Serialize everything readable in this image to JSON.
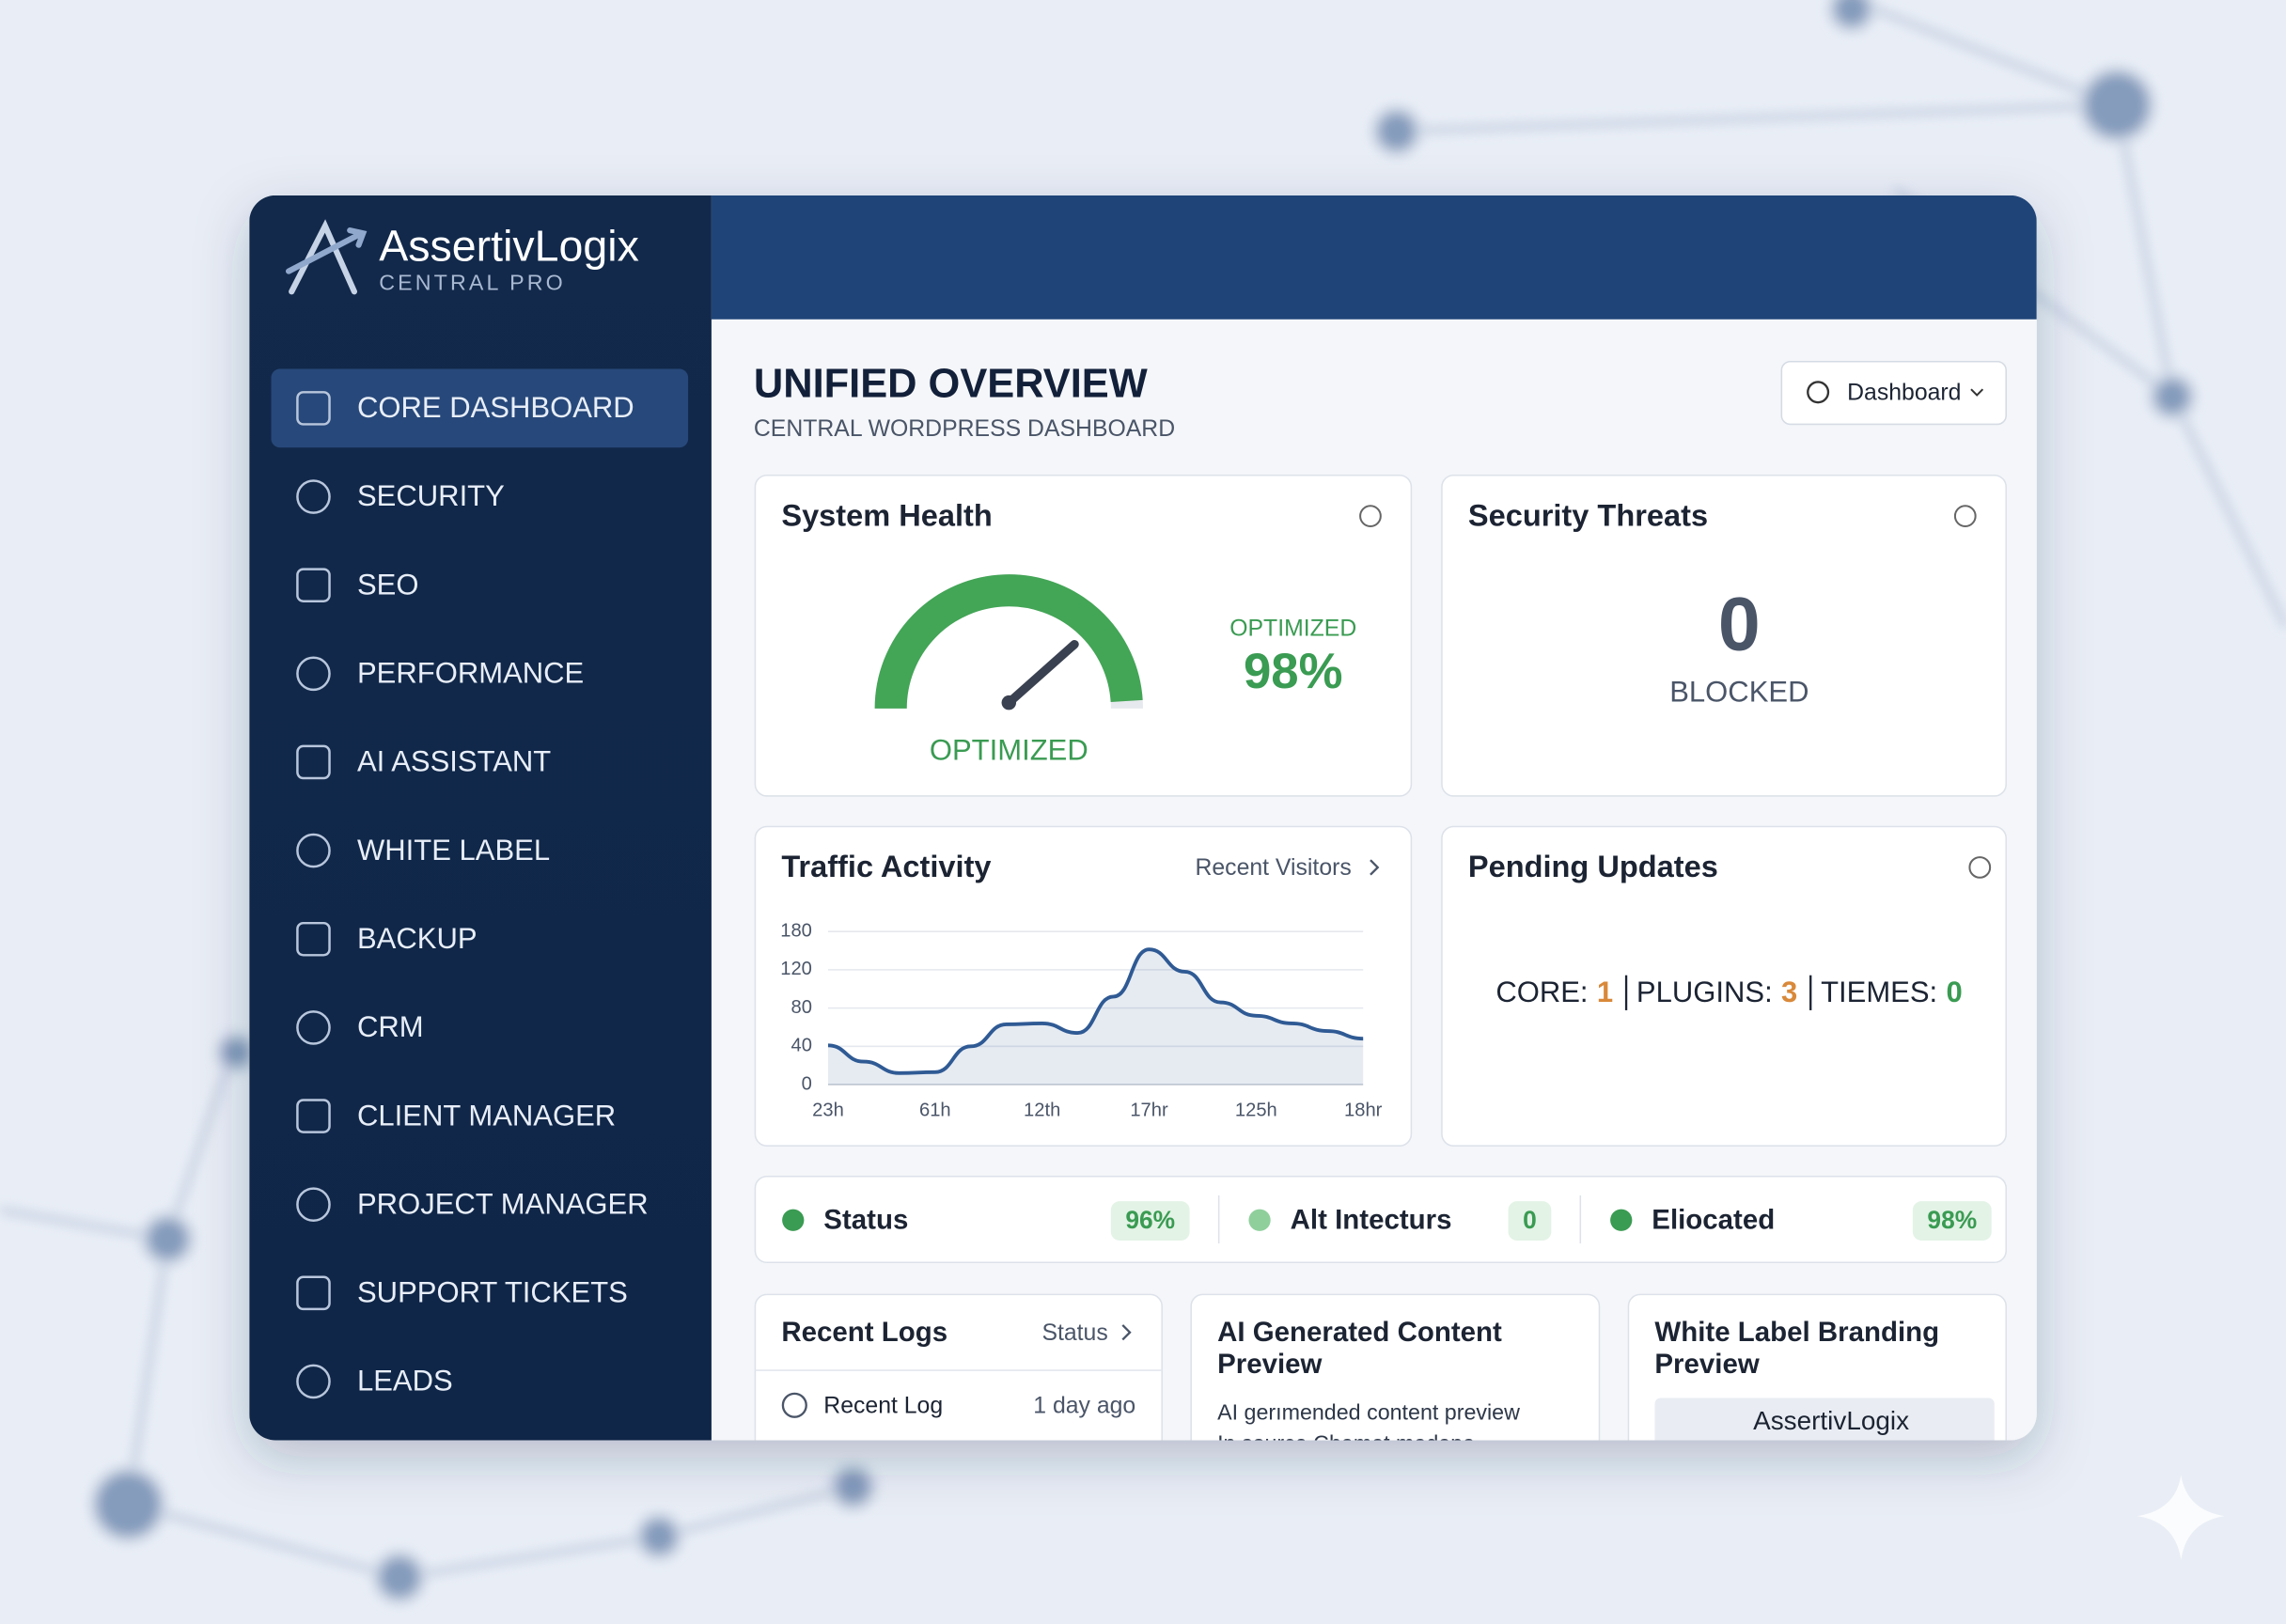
{
  "brand": {
    "name": "AssertivLogix",
    "subtitle": "CENTRAL PRO"
  },
  "nav": [
    "CORE DASHBOARD",
    "SECURITY",
    "SEO",
    "PERFORMANCE",
    "AI ASSISTANT",
    "WHITE LABEL",
    "BACKUP",
    "CRM",
    "CLIENT MANAGER",
    "PROJECT MANAGER",
    "SUPPORT TICKETS",
    "LEADS"
  ],
  "header": {
    "title": "UNIFIED OVERVIEW",
    "subtitle": "CENTRAL WORDPRESS DASHBOARD",
    "dropdown": "Dashboard"
  },
  "system_health": {
    "title": "System Health",
    "gauge_label": "OPTIMIZED",
    "status_label": "OPTIMIZED",
    "value": 98,
    "value_label": "98%"
  },
  "security_threats": {
    "title": "Security Threats",
    "count": 0,
    "label": "BLOCKED"
  },
  "traffic": {
    "title": "Traffic Activity",
    "link": "Recent Visitors",
    "type": "line",
    "categories": [
      "23h",
      null,
      null,
      "61h",
      null,
      null,
      "12th",
      null,
      null,
      "17hr",
      null,
      null,
      "125h",
      null,
      null,
      "18hr"
    ],
    "values": [
      41,
      24,
      12,
      13,
      40,
      63,
      64,
      54,
      92,
      152,
      118,
      86,
      72,
      64,
      56,
      48
    ],
    "yticks": [
      0,
      40,
      80,
      120,
      180
    ],
    "ylim": [
      0,
      180
    ],
    "color": "#2f5a94",
    "grid": true
  },
  "pending_updates": {
    "title": "Pending Updates",
    "items": [
      {
        "label": "CORE:",
        "value": 1
      },
      {
        "label": "PLUGINS:",
        "value": 3
      },
      {
        "label": "TIEMES:",
        "value": 0
      }
    ]
  },
  "status_bar": [
    {
      "name": "Status",
      "value": 96,
      "value_label": "96%"
    },
    {
      "name": "Alt Intecturs",
      "value": 0
    },
    {
      "name": "Eliocated",
      "value": 98,
      "value_label": "98%"
    }
  ],
  "recent_logs": {
    "title": "Recent Logs",
    "link": "Status",
    "rows": [
      {
        "label": "Recent Log",
        "time": "1 day ago"
      }
    ]
  },
  "ai_content": {
    "title_lines": [
      "AI Generated Content",
      "Preview"
    ],
    "text_lines": [
      "AI gerımended content preview",
      "In source Chamat madapa"
    ]
  },
  "white_label": {
    "title_lines": [
      "White Label Branding",
      "Preview"
    ],
    "preview": "AssertivLogix"
  }
}
